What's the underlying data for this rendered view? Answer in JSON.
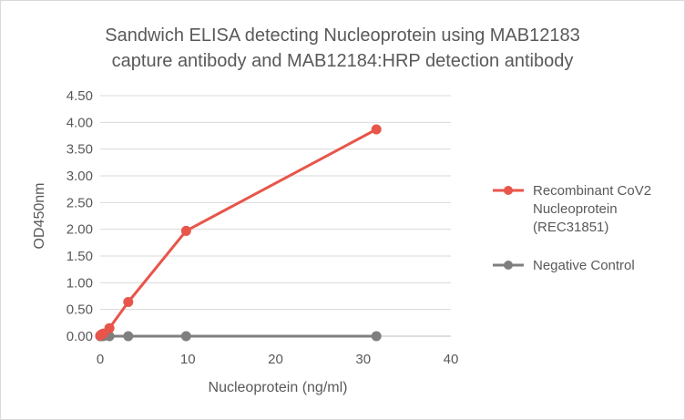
{
  "chart_data": {
    "type": "line",
    "title_lines": [
      "Sandwich ELISA detecting Nucleoprotein using MAB12183",
      "capture antibody and MAB12184:HRP detection antibody"
    ],
    "xlabel": "Nucleoprotein (ng/ml)",
    "ylabel": "OD450nm",
    "xlim": [
      0,
      40
    ],
    "ylim": [
      0,
      4.5
    ],
    "x_ticks": [
      "0",
      "10",
      "20",
      "30",
      "40"
    ],
    "y_ticks": [
      "0.00",
      "0.50",
      "1.00",
      "1.50",
      "2.00",
      "2.50",
      "3.00",
      "3.50",
      "4.00",
      "4.50"
    ],
    "grid": {
      "horizontal": true,
      "vertical": false
    },
    "legend_position": "right",
    "series": [
      {
        "name_lines": [
          "Recombinant CoV2",
          "Nucleoprotein",
          "(REC31851)"
        ],
        "color": "#e8554a",
        "points": [
          {
            "x": 0,
            "y": 0.01
          },
          {
            "x": 0.12,
            "y": 0.03
          },
          {
            "x": 0.35,
            "y": 0.05
          },
          {
            "x": 1.05,
            "y": 0.15
          },
          {
            "x": 3.2,
            "y": 0.64
          },
          {
            "x": 9.8,
            "y": 1.97
          },
          {
            "x": 31.5,
            "y": 3.87
          }
        ]
      },
      {
        "name_lines": [
          "Negative Control"
        ],
        "color": "#7f7f7f",
        "points": [
          {
            "x": 0,
            "y": 0.0
          },
          {
            "x": 0.12,
            "y": 0.0
          },
          {
            "x": 0.35,
            "y": 0.0
          },
          {
            "x": 1.05,
            "y": 0.0
          },
          {
            "x": 3.2,
            "y": 0.0
          },
          {
            "x": 9.8,
            "y": 0.0
          },
          {
            "x": 31.5,
            "y": 0.0
          }
        ]
      }
    ]
  }
}
